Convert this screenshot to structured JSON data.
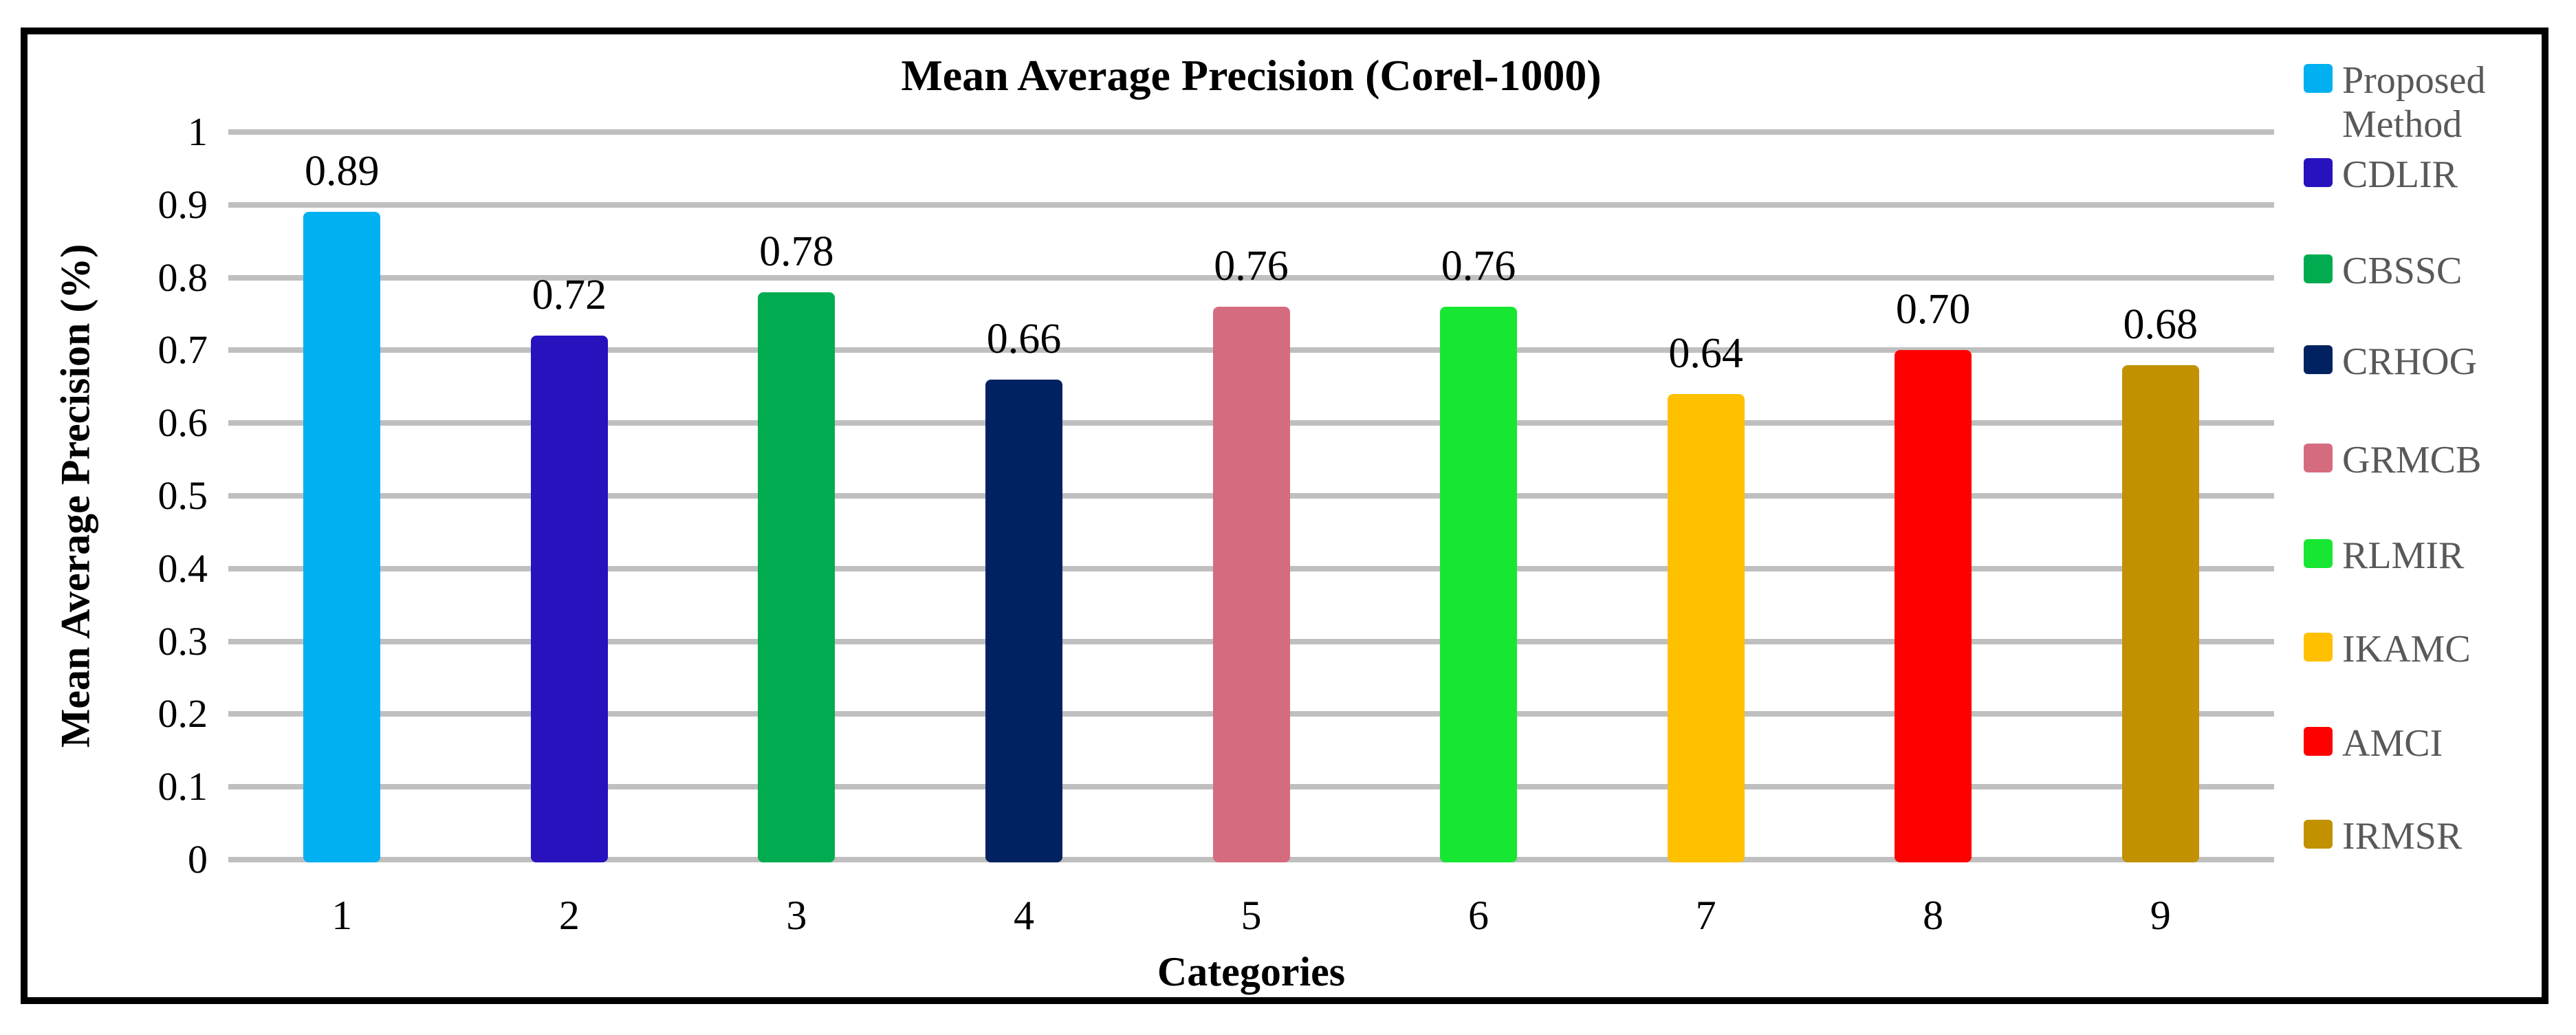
{
  "chart_data": {
    "type": "bar",
    "title": "Mean Average Precision (Corel-1000)",
    "xlabel": "Categories",
    "ylabel": "Mean Average Precision (%)",
    "categories": [
      "1",
      "2",
      "3",
      "4",
      "5",
      "6",
      "7",
      "8",
      "9"
    ],
    "values": [
      0.89,
      0.72,
      0.78,
      0.66,
      0.76,
      0.76,
      0.64,
      0.7,
      0.68
    ],
    "value_labels": [
      "0.89",
      "0.72",
      "0.78",
      "0.66",
      "0.76",
      "0.76",
      "0.64",
      "0.70",
      "0.68"
    ],
    "series_labels": [
      "Proposed Method",
      "CDLIR",
      "CBSSC",
      "CRHOG",
      "GRMCB",
      "RLMIR",
      "IKAMC",
      "AMCI",
      "IRMSR"
    ],
    "colors": [
      "#00B0F0",
      "#2712BE",
      "#00AC4F",
      "#012260",
      "#D56B7F",
      "#17E732",
      "#FFC000",
      "#FF0000",
      "#C19100"
    ],
    "ylim": [
      0,
      1
    ],
    "ytick_labels": [
      "0",
      "0.1",
      "0.2",
      "0.3",
      "0.4",
      "0.5",
      "0.6",
      "0.7",
      "0.8",
      "0.9",
      "1"
    ],
    "grid": true,
    "gridline_color": "#BFBFBF",
    "legend_position": "right",
    "legend_text_color": "#595959",
    "text_color": "#000000",
    "frame_color": "#000000"
  }
}
